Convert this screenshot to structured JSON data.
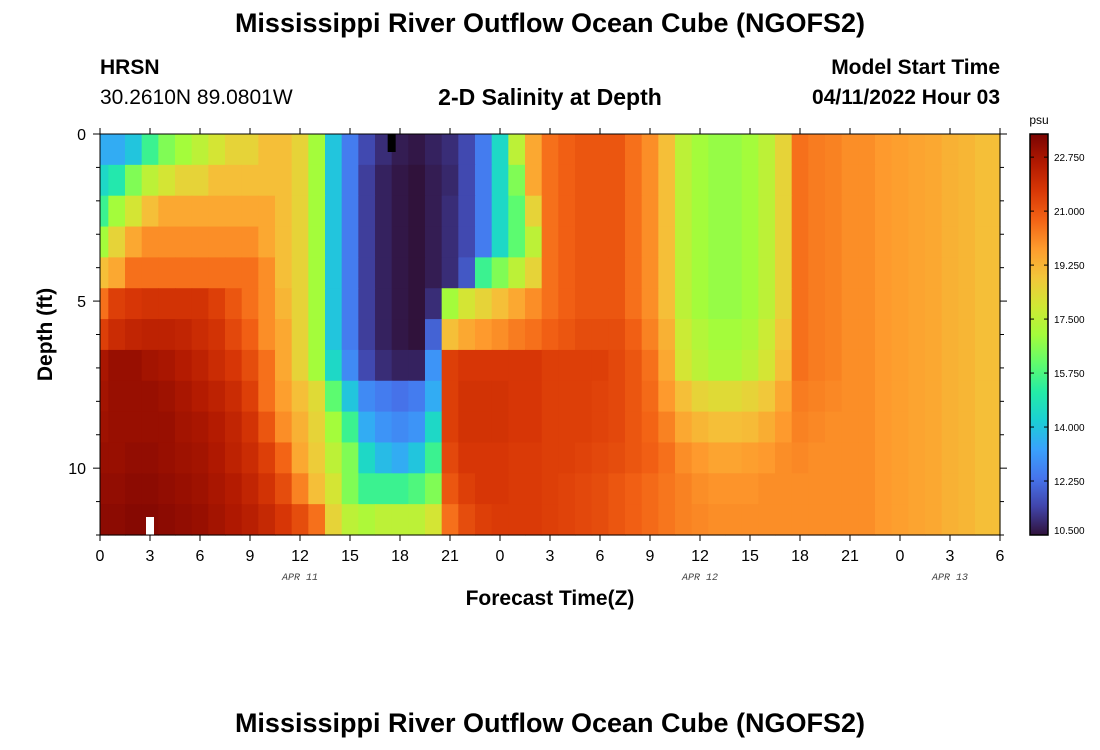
{
  "header": {
    "title": "Mississippi River Outflow Ocean Cube (NGOFS2)",
    "station": "HRSN",
    "coordinates": "30.2610N  89.0801W",
    "subtitle": "2-D Salinity at Depth",
    "model_start_label": "Model Start Time",
    "model_start_value": "04/11/2022 Hour 03"
  },
  "footer": {
    "title": "Mississippi River Outflow Ocean Cube (NGOFS2)"
  },
  "colors": {
    "palette": [
      "#30123b",
      "#4145ab",
      "#4675ed",
      "#39a2fc",
      "#1bcfd4",
      "#24eca6",
      "#61fc6c",
      "#a4fc3b",
      "#d1e834",
      "#f3c63a",
      "#fe9b2d",
      "#f36315",
      "#d93806",
      "#b11901",
      "#7a0402"
    ]
  },
  "chart_data": {
    "type": "heatmap",
    "title": "2-D Salinity at Depth",
    "xlabel": "Forecast Time(Z)",
    "ylabel": "Depth (ft)",
    "x_tick_labels": [
      "0",
      "3",
      "6",
      "9",
      "12",
      "15",
      "18",
      "21",
      "0",
      "3",
      "6",
      "9",
      "12",
      "15",
      "18",
      "21",
      "0",
      "3",
      "6"
    ],
    "x_range_hours": [
      0,
      54
    ],
    "date_labels": [
      {
        "label": "APR 11",
        "hour": 12
      },
      {
        "label": "APR 12",
        "hour": 36
      },
      {
        "label": "APR 13",
        "hour": 51
      }
    ],
    "y_tick_labels": [
      "0",
      "5",
      "10"
    ],
    "y_ticks": [
      0,
      5,
      10
    ],
    "ylim": [
      0,
      12
    ],
    "units": "psu",
    "colorbar_ticks": [
      "22.750",
      "21.000",
      "19.250",
      "17.500",
      "15.750",
      "14.000",
      "12.250",
      "10.500"
    ],
    "colorbar_tick_values": [
      22.75,
      21.0,
      19.25,
      17.5,
      15.75,
      14.0,
      12.25,
      10.5
    ],
    "value_range": [
      10.5,
      23.5
    ],
    "markers": [
      {
        "kind": "model-start",
        "hour": 3,
        "depth": 12,
        "color": "#ffffff"
      },
      {
        "kind": "current-time",
        "hour": 17.5,
        "depth": 0,
        "color": "#000000"
      }
    ],
    "series_description": "Salinity (psu) at 13 depth levels (0 to 12 ft), hourly from 0 to 54 h",
    "depth_levels": [
      {
        "depth": 0,
        "values": [
          13.5,
          13.5,
          14,
          15.5,
          16.5,
          17,
          17.5,
          18,
          18.5,
          18.5,
          19,
          19,
          18.5,
          17,
          14,
          12.5,
          11.5,
          11,
          10.7,
          10.6,
          10.8,
          11,
          11.5,
          12.5,
          14.5,
          17.5,
          19.5,
          20.5,
          20.8,
          21,
          21,
          21,
          20.5,
          20,
          19,
          17.5,
          17,
          16.8,
          16.8,
          17,
          17.5,
          18.5,
          20.5,
          20.3,
          20.2,
          20,
          20,
          19.8,
          19.7,
          19.6,
          19.5,
          19.3,
          19.2,
          19,
          19
        ]
      },
      {
        "depth": 1,
        "values": [
          14.5,
          15,
          16.5,
          17.5,
          18,
          18.5,
          18.5,
          19,
          19,
          19,
          19,
          19,
          18.5,
          17,
          14,
          12.5,
          11.3,
          10.8,
          10.6,
          10.5,
          10.7,
          10.9,
          11.5,
          12.5,
          14.5,
          16.5,
          19.5,
          20.5,
          20.8,
          21,
          21,
          21,
          20.5,
          20,
          19,
          17.5,
          17,
          16.8,
          16.8,
          17,
          17.5,
          18.5,
          20.5,
          20.3,
          20.2,
          20,
          20,
          19.8,
          19.7,
          19.6,
          19.5,
          19.3,
          19.2,
          19,
          19
        ]
      },
      {
        "depth": 2,
        "values": [
          15.5,
          17,
          18,
          19,
          19.5,
          19.5,
          19.5,
          19.5,
          19.5,
          19.5,
          19.5,
          19,
          18.5,
          17,
          14,
          12.5,
          11.3,
          10.8,
          10.6,
          10.5,
          10.7,
          11,
          11.5,
          12.5,
          14.5,
          16,
          18.5,
          20.5,
          20.8,
          21,
          21,
          21,
          20.5,
          20,
          19,
          17.5,
          17,
          16.8,
          16.8,
          17,
          17.5,
          18.5,
          20.5,
          20.3,
          20.2,
          20,
          20,
          19.8,
          19.7,
          19.6,
          19.5,
          19.3,
          19.2,
          19,
          19
        ]
      },
      {
        "depth": 3,
        "values": [
          17,
          18.5,
          19.5,
          20,
          20,
          20,
          20,
          20,
          20,
          20,
          19.5,
          19,
          18.5,
          17,
          14,
          12.5,
          11.3,
          10.8,
          10.6,
          10.5,
          10.7,
          11,
          11.5,
          12.5,
          14.5,
          16,
          17.5,
          20.5,
          20.8,
          21,
          21,
          21,
          20.5,
          20,
          19,
          17.5,
          17,
          16.8,
          16.8,
          17,
          17.5,
          18.5,
          20.5,
          20.3,
          20.2,
          20,
          20,
          19.8,
          19.7,
          19.6,
          19.5,
          19.3,
          19.2,
          19,
          19
        ]
      },
      {
        "depth": 4,
        "values": [
          19,
          19.5,
          20.5,
          20.5,
          20.5,
          20.5,
          20.5,
          20.5,
          20.5,
          20.5,
          20,
          19,
          18.5,
          17,
          14,
          12.5,
          11.3,
          10.8,
          10.6,
          10.5,
          10.7,
          11,
          11.8,
          15.5,
          16.5,
          17.5,
          18.5,
          20.5,
          20.8,
          21,
          21,
          21,
          20.5,
          20,
          19,
          17.5,
          17,
          16.8,
          16.8,
          17,
          17.5,
          18.5,
          20.5,
          20.3,
          20.2,
          20,
          20,
          19.8,
          19.7,
          19.6,
          19.5,
          19.3,
          19.2,
          19,
          19
        ]
      },
      {
        "depth": 5,
        "values": [
          20.5,
          21.5,
          21.7,
          21.8,
          21.8,
          21.8,
          21.8,
          21.5,
          21,
          20.5,
          20,
          19.2,
          18.5,
          17,
          14,
          12.5,
          11.3,
          10.8,
          10.6,
          10.5,
          11,
          17,
          18,
          18.5,
          19,
          19.5,
          20,
          20.5,
          20.8,
          21,
          21,
          21,
          20.5,
          20,
          19,
          17.5,
          17,
          16.8,
          16.8,
          17,
          17.5,
          18.5,
          20.5,
          20.3,
          20.2,
          20,
          20,
          19.8,
          19.7,
          19.6,
          19.5,
          19.3,
          19.2,
          19,
          19
        ]
      },
      {
        "depth": 6,
        "values": [
          21.5,
          22,
          22.2,
          22.3,
          22.3,
          22.2,
          22,
          21.8,
          21.3,
          20.8,
          20,
          19.5,
          18.5,
          17,
          14,
          12.5,
          11.3,
          10.8,
          10.6,
          10.5,
          12,
          19,
          19.5,
          19.8,
          20,
          20.3,
          20.5,
          20.8,
          21,
          21.2,
          21.2,
          21.2,
          20.8,
          20.2,
          19.3,
          17.8,
          17.3,
          17,
          17,
          17.2,
          17.8,
          18.8,
          20.5,
          20.3,
          20.2,
          20,
          20,
          19.8,
          19.7,
          19.6,
          19.5,
          19.3,
          19.2,
          19,
          19
        ]
      },
      {
        "depth": 7,
        "values": [
          22.7,
          23,
          23,
          22.8,
          22.7,
          22.5,
          22.3,
          22,
          21.7,
          21.2,
          20.5,
          19.5,
          18.5,
          17,
          14.5,
          12.8,
          11.5,
          11,
          10.8,
          10.8,
          13,
          21.5,
          21.7,
          21.7,
          21.7,
          21.7,
          21.7,
          21.5,
          21.5,
          21.5,
          21.5,
          21.3,
          21,
          20.5,
          19.5,
          18,
          17.5,
          17.2,
          17.2,
          17.5,
          18,
          19,
          20.5,
          20.3,
          20.2,
          20,
          20,
          19.8,
          19.7,
          19.6,
          19.5,
          19.3,
          19.2,
          19,
          19
        ]
      },
      {
        "depth": 8,
        "values": [
          22.8,
          23,
          23,
          23,
          22.9,
          22.7,
          22.5,
          22.3,
          22,
          21.5,
          20.5,
          19.7,
          19,
          18.3,
          16,
          14,
          12.8,
          12.5,
          12.3,
          12.5,
          13.5,
          21.5,
          21.8,
          21.8,
          21.8,
          21.7,
          21.7,
          21.5,
          21.5,
          21.5,
          21.4,
          21.3,
          21,
          20.6,
          19.8,
          19,
          18.5,
          18.3,
          18.3,
          18.5,
          18.8,
          19.5,
          20.3,
          20.2,
          20.1,
          20,
          20,
          19.8,
          19.7,
          19.6,
          19.5,
          19.3,
          19.2,
          19,
          19
        ]
      },
      {
        "depth": 9,
        "values": [
          22.9,
          23,
          23,
          23,
          23,
          22.8,
          22.7,
          22.5,
          22.2,
          21.8,
          21,
          20,
          19.3,
          18.5,
          17,
          15.5,
          13.5,
          13,
          12.8,
          13,
          14.5,
          21.5,
          21.8,
          21.8,
          21.8,
          21.7,
          21.7,
          21.5,
          21.5,
          21.5,
          21.4,
          21.3,
          21,
          20.7,
          20.2,
          19.5,
          19.2,
          19,
          19,
          19.1,
          19.4,
          19.8,
          20.2,
          20.1,
          20,
          20,
          20,
          19.8,
          19.7,
          19.6,
          19.5,
          19.3,
          19.2,
          19,
          19
        ]
      },
      {
        "depth": 10,
        "values": [
          23,
          23,
          23.1,
          23.1,
          23,
          22.9,
          22.8,
          22.6,
          22.3,
          22,
          21.5,
          20.7,
          19.5,
          18.7,
          17.5,
          16.5,
          14.5,
          13.8,
          13.5,
          14,
          15.5,
          21.3,
          21.7,
          21.7,
          21.7,
          21.6,
          21.6,
          21.5,
          21.5,
          21.4,
          21.3,
          21.2,
          21,
          20.8,
          20.5,
          20,
          19.8,
          19.6,
          19.6,
          19.7,
          19.8,
          20,
          20.1,
          20,
          20,
          20,
          20,
          19.8,
          19.7,
          19.6,
          19.5,
          19.3,
          19.2,
          19,
          19
        ]
      },
      {
        "depth": 11,
        "values": [
          23.1,
          23.1,
          23.2,
          23.2,
          23.1,
          23,
          22.9,
          22.7,
          22.5,
          22.2,
          21.8,
          21.2,
          20.2,
          19,
          18,
          16.5,
          15.5,
          15.5,
          15.5,
          15.8,
          16.5,
          21,
          21.5,
          21.7,
          21.7,
          21.6,
          21.6,
          21.5,
          21.4,
          21.3,
          21.2,
          21,
          20.8,
          20.6,
          20.4,
          20.2,
          20,
          19.9,
          19.9,
          19.9,
          20,
          20,
          20,
          20,
          20,
          20,
          20,
          19.8,
          19.7,
          19.6,
          19.5,
          19.3,
          19.2,
          19,
          19
        ]
      },
      {
        "depth": 12,
        "values": [
          23.2,
          23.2,
          23.3,
          23.3,
          23.2,
          23.1,
          23,
          22.8,
          22.6,
          22.4,
          22.1,
          21.7,
          21.2,
          20.5,
          18.5,
          17.5,
          17.2,
          17.5,
          17.5,
          17.5,
          18,
          20.5,
          21.2,
          21.5,
          21.6,
          21.6,
          21.6,
          21.5,
          21.4,
          21.3,
          21.2,
          21,
          20.8,
          20.6,
          20.4,
          20.2,
          20.1,
          20,
          20,
          20,
          20,
          20,
          20,
          20,
          20,
          20,
          20,
          19.8,
          19.7,
          19.6,
          19.5,
          19.3,
          19.2,
          19,
          19
        ]
      }
    ]
  }
}
